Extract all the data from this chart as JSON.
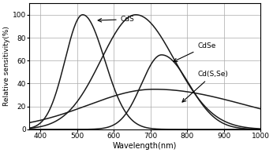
{
  "title": "",
  "xlabel": "Wavelength(nm)",
  "ylabel": "Relative sensitivity(%)",
  "xlim": [
    370,
    1000
  ],
  "ylim": [
    0,
    110
  ],
  "xticks": [
    400,
    500,
    600,
    700,
    800,
    900,
    1000
  ],
  "yticks": [
    0,
    20,
    40,
    60,
    80,
    100
  ],
  "grid_color": "#aaaaaa",
  "bg_color": "#ffffff",
  "curve_color": "#1a1a1a",
  "label_CdS": "CdS",
  "label_CdSe": "CdSe",
  "label_CdSSe": "Cd(S,Se)"
}
